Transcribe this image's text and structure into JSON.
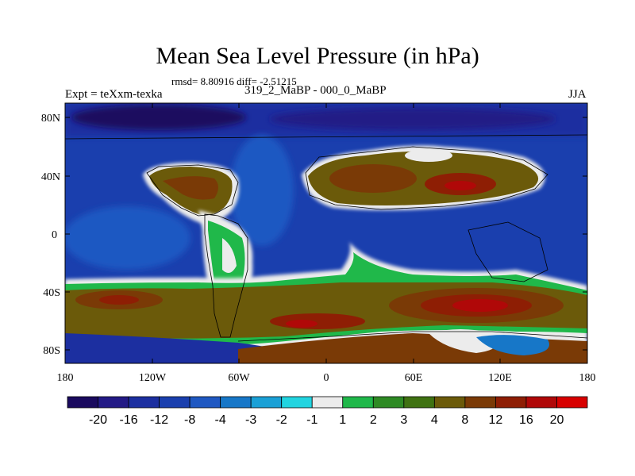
{
  "title": "Mean Sea Level Pressure (in hPa)",
  "stats": "rmsd= 8.80916 diff= -2.51215",
  "experiment": "Expt = teXxm-texka",
  "comparison": "319_2_MaBP - 000_0_MaBP",
  "season": "JJA",
  "lat_ticks": [
    "80N",
    "40N",
    "0",
    "40S",
    "80S"
  ],
  "lon_ticks": [
    "180",
    "120W",
    "60W",
    "0",
    "60E",
    "120E",
    "180"
  ],
  "colorbar": {
    "labels": [
      "-20",
      "-16",
      "-12",
      "-8",
      "-4",
      "-3",
      "-2",
      "-1",
      "1",
      "2",
      "3",
      "4",
      "8",
      "12",
      "16",
      "20"
    ],
    "colors": [
      "#1a0a5e",
      "#231a86",
      "#1c2fa0",
      "#1a3fae",
      "#1f58c2",
      "#1777c8",
      "#1aa0d6",
      "#22d4e0",
      "#ececec",
      "#20b84a",
      "#2e8a24",
      "#3f7212",
      "#6b5a0a",
      "#7a3a06",
      "#8e1e04",
      "#b00808",
      "#d80000"
    ]
  }
}
